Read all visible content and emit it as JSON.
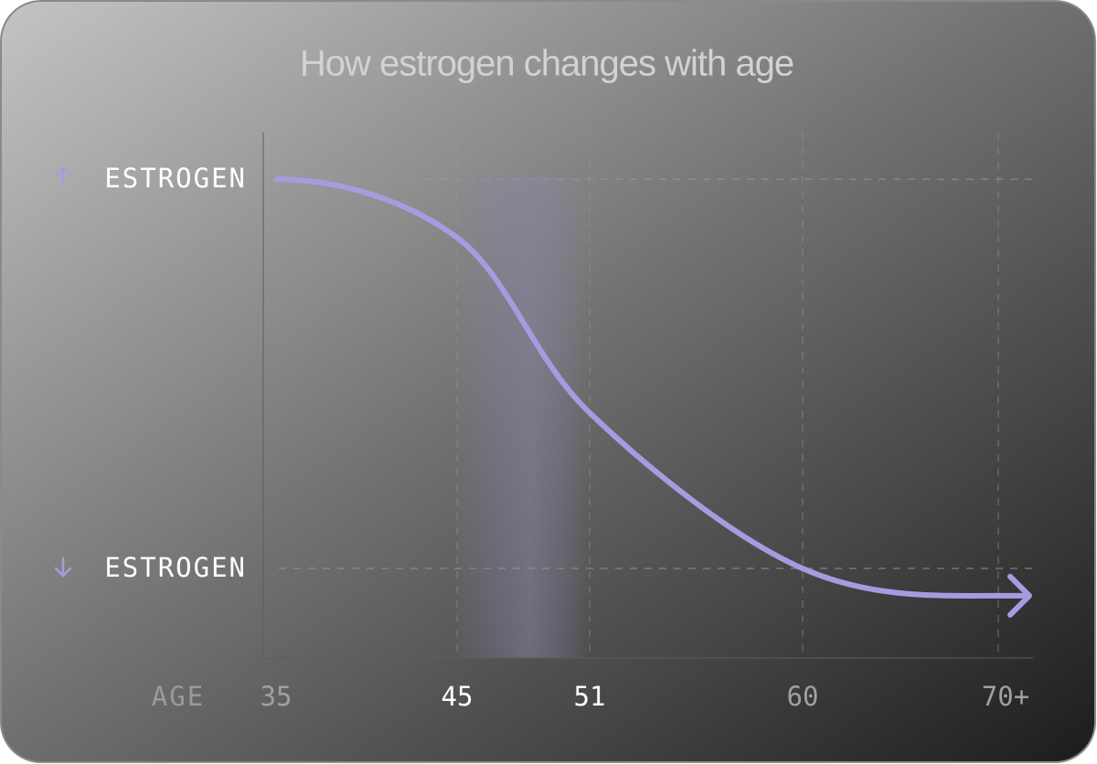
{
  "chart_data": {
    "type": "line",
    "title": "How estrogen changes with age",
    "x_label": "AGE",
    "categories": [
      "35",
      "45",
      "51",
      "60",
      "70+"
    ],
    "series": [
      {
        "name": "Estrogen",
        "color": "#a99ae0",
        "values": [
          1,
          0.85,
          0.4,
          0,
          -0.07
        ]
      }
    ],
    "ylim": [
      -0.23,
      1.12
    ],
    "yticks": [
      {
        "value": 1,
        "label": "ESTROGEN"
      },
      {
        "value": 0,
        "label": "ESTROGEN"
      }
    ],
    "grid": true
  }
}
